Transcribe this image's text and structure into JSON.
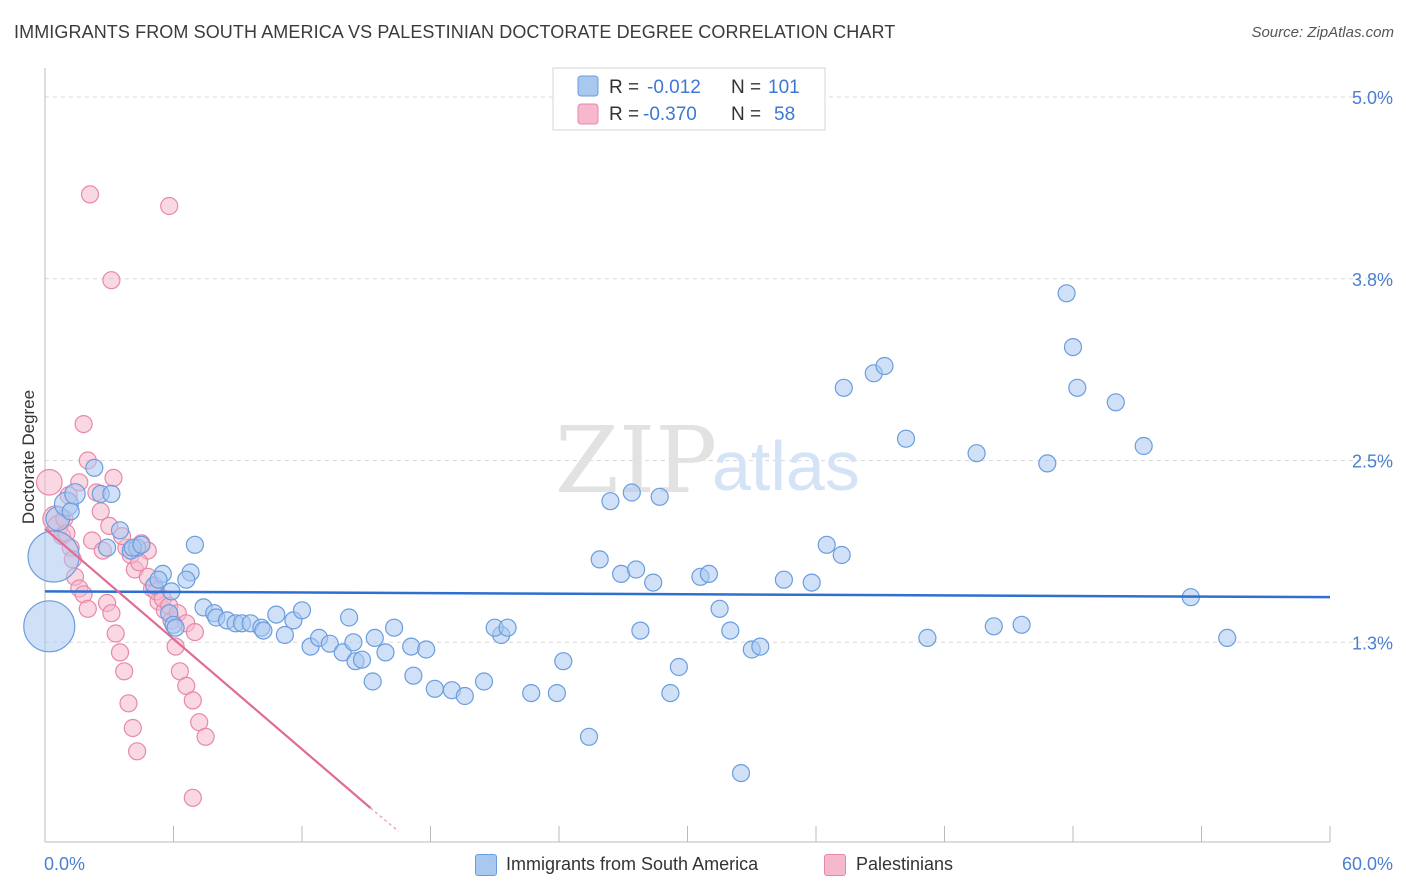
{
  "header": {
    "title": "IMMIGRANTS FROM SOUTH AMERICA VS PALESTINIAN DOCTORATE DEGREE CORRELATION CHART",
    "source": "Source: ZipAtlas.com"
  },
  "watermark": {
    "zip": "ZIP",
    "atlas": "atlas"
  },
  "stats": [
    {
      "r_label": "R =",
      "r": "-0.012",
      "n_label": "N =",
      "n": "101"
    },
    {
      "r_label": "R =",
      "r": "-0.370",
      "n_label": "N =",
      "n": "58"
    }
  ],
  "colors": {
    "blue_fill": "#a9c8f0",
    "blue_stroke": "#6a9ddf",
    "blue_line": "#2e6fcf",
    "pink_fill": "#f6b8cc",
    "pink_stroke": "#e888a8",
    "pink_line": "#e26b96",
    "tick_label": "#4a7fd1",
    "grid": "#d8d8d8"
  },
  "chart_data": {
    "type": "scatter",
    "title": "IMMIGRANTS FROM SOUTH AMERICA VS PALESTINIAN DOCTORATE DEGREE CORRELATION CHART",
    "xlabel": "",
    "ylabel": "Doctorate Degree",
    "xlim": [
      0,
      60
    ],
    "ylim": [
      0,
      5.1
    ],
    "x_tick_labels": {
      "left": "0.0%",
      "right": "60.0%"
    },
    "y_ticks": [
      {
        "value": 1.25,
        "label": "1.3%"
      },
      {
        "value": 2.5,
        "label": "2.5%"
      },
      {
        "value": 3.75,
        "label": "3.8%"
      },
      {
        "value": 5.0,
        "label": "5.0%"
      }
    ],
    "legend": [
      "Immigrants from South America",
      "Palestinians"
    ],
    "series": [
      {
        "name": "Immigrants from South America",
        "trendline": {
          "x0": 0,
          "y0": 1.6,
          "x1": 60,
          "y1": 1.56
        },
        "points": [
          [
            0.2,
            1.36,
            3
          ],
          [
            0.4,
            1.84,
            3
          ],
          [
            0.6,
            2.1,
            1.4
          ],
          [
            1.0,
            2.2,
            1.4
          ],
          [
            1.2,
            2.15,
            1
          ],
          [
            1.4,
            2.27,
            1.2
          ],
          [
            2.3,
            2.45,
            1
          ],
          [
            2.6,
            2.27,
            1
          ],
          [
            3.1,
            2.27,
            1
          ],
          [
            2.9,
            1.9,
            1
          ],
          [
            3.5,
            2.02,
            1
          ],
          [
            4.0,
            1.88,
            1
          ],
          [
            4.3,
            1.9,
            1
          ],
          [
            4.1,
            1.9,
            1
          ],
          [
            4.5,
            1.92,
            1
          ],
          [
            5.1,
            1.64,
            1
          ],
          [
            5.5,
            1.72,
            1
          ],
          [
            5.3,
            1.68,
            1
          ],
          [
            5.8,
            1.45,
            1
          ],
          [
            5.9,
            1.6,
            1
          ],
          [
            6.0,
            1.37,
            1
          ],
          [
            6.1,
            1.35,
            1
          ],
          [
            6.8,
            1.73,
            1
          ],
          [
            6.6,
            1.68,
            1
          ],
          [
            7.0,
            1.92,
            1
          ],
          [
            7.4,
            1.49,
            1
          ],
          [
            7.9,
            1.45,
            1
          ],
          [
            8.0,
            1.42,
            1
          ],
          [
            8.5,
            1.4,
            1
          ],
          [
            8.9,
            1.38,
            1
          ],
          [
            9.2,
            1.38,
            1
          ],
          [
            9.6,
            1.38,
            1
          ],
          [
            10.1,
            1.35,
            1
          ],
          [
            10.2,
            1.33,
            1
          ],
          [
            10.8,
            1.44,
            1
          ],
          [
            11.2,
            1.3,
            1
          ],
          [
            11.6,
            1.4,
            1
          ],
          [
            12.0,
            1.47,
            1
          ],
          [
            12.4,
            1.22,
            1
          ],
          [
            12.8,
            1.28,
            1
          ],
          [
            13.3,
            1.24,
            1
          ],
          [
            13.9,
            1.18,
            1
          ],
          [
            14.4,
            1.25,
            1
          ],
          [
            14.2,
            1.42,
            1
          ],
          [
            14.5,
            1.12,
            1
          ],
          [
            14.8,
            1.13,
            1
          ],
          [
            15.4,
            1.28,
            1
          ],
          [
            15.3,
            0.98,
            1
          ],
          [
            15.9,
            1.18,
            1
          ],
          [
            16.3,
            1.35,
            1
          ],
          [
            17.1,
            1.22,
            1
          ],
          [
            17.2,
            1.02,
            1
          ],
          [
            17.8,
            1.2,
            1
          ],
          [
            18.2,
            0.93,
            1
          ],
          [
            19.0,
            0.92,
            1
          ],
          [
            19.6,
            0.88,
            1
          ],
          [
            20.5,
            0.98,
            1
          ],
          [
            21.3,
            1.3,
            1
          ],
          [
            21.0,
            1.35,
            1
          ],
          [
            21.6,
            1.35,
            1
          ],
          [
            22.7,
            0.9,
            1
          ],
          [
            23.9,
            0.9,
            1
          ],
          [
            24.2,
            1.12,
            1
          ],
          [
            25.4,
            0.6,
            1
          ],
          [
            25.9,
            1.82,
            1
          ],
          [
            26.4,
            2.22,
            1
          ],
          [
            26.9,
            1.72,
            1
          ],
          [
            27.4,
            2.28,
            1
          ],
          [
            27.6,
            1.75,
            1
          ],
          [
            27.8,
            1.33,
            1
          ],
          [
            28.4,
            1.66,
            1
          ],
          [
            28.7,
            2.25,
            1
          ],
          [
            29.2,
            0.9,
            1
          ],
          [
            29.6,
            1.08,
            1
          ],
          [
            30.6,
            1.7,
            1
          ],
          [
            31.0,
            1.72,
            1
          ],
          [
            31.5,
            1.48,
            1
          ],
          [
            32.5,
            0.35,
            1
          ],
          [
            32.0,
            1.33,
            1
          ],
          [
            33.0,
            1.2,
            1
          ],
          [
            33.4,
            1.22,
            1
          ],
          [
            34.5,
            1.68,
            1
          ],
          [
            35.8,
            1.66,
            1
          ],
          [
            36.5,
            1.92,
            1
          ],
          [
            37.2,
            1.85,
            1
          ],
          [
            38.7,
            3.1,
            1
          ],
          [
            37.3,
            3.0,
            1
          ],
          [
            39.2,
            3.15,
            1
          ],
          [
            40.2,
            2.65,
            1
          ],
          [
            41.2,
            1.28,
            1
          ],
          [
            43.5,
            2.55,
            1
          ],
          [
            44.3,
            1.36,
            1
          ],
          [
            45.6,
            1.37,
            1
          ],
          [
            46.8,
            2.48,
            1
          ],
          [
            47.7,
            3.65,
            1
          ],
          [
            48.0,
            3.28,
            1
          ],
          [
            48.2,
            3.0,
            1
          ],
          [
            50.0,
            2.9,
            1
          ],
          [
            51.3,
            2.6,
            1
          ],
          [
            53.5,
            1.56,
            1
          ],
          [
            55.2,
            1.28,
            1
          ]
        ]
      },
      {
        "name": "Palestinians",
        "trendline": {
          "x0": 0,
          "y0": 2.03,
          "x1": 15.2,
          "y1": 0.11,
          "dashed_to": {
            "x": 16.5,
            "y": -0.05
          }
        },
        "points": [
          [
            0.2,
            2.35,
            1.5
          ],
          [
            0.5,
            2.1,
            1.5
          ],
          [
            0.6,
            2.05,
            1.2
          ],
          [
            0.8,
            1.98,
            1
          ],
          [
            0.9,
            2.1,
            1
          ],
          [
            1.0,
            2.0,
            1
          ],
          [
            1.2,
            1.9,
            1
          ],
          [
            1.3,
            1.82,
            1
          ],
          [
            1.4,
            1.7,
            1
          ],
          [
            1.6,
            1.62,
            1
          ],
          [
            1.8,
            1.58,
            1
          ],
          [
            2.0,
            1.48,
            1
          ],
          [
            2.2,
            1.95,
            1
          ],
          [
            2.4,
            2.28,
            1
          ],
          [
            2.7,
            1.88,
            1
          ],
          [
            2.9,
            1.52,
            1
          ],
          [
            3.1,
            1.45,
            1
          ],
          [
            3.3,
            1.31,
            1
          ],
          [
            3.5,
            1.18,
            1
          ],
          [
            3.7,
            1.05,
            1
          ],
          [
            3.9,
            0.83,
            1
          ],
          [
            4.1,
            0.66,
            1
          ],
          [
            4.3,
            0.5,
            1
          ],
          [
            4.5,
            1.93,
            1
          ],
          [
            4.8,
            1.88,
            1
          ],
          [
            5.0,
            1.62,
            1
          ],
          [
            5.3,
            1.53,
            1
          ],
          [
            5.6,
            1.47,
            1
          ],
          [
            5.9,
            1.4,
            1
          ],
          [
            6.1,
            1.22,
            1
          ],
          [
            6.3,
            1.05,
            1
          ],
          [
            6.6,
            0.95,
            1
          ],
          [
            6.9,
            0.85,
            1
          ],
          [
            7.2,
            0.7,
            1
          ],
          [
            7.5,
            0.6,
            1
          ],
          [
            1.8,
            2.75,
            1
          ],
          [
            3.2,
            2.38,
            1
          ],
          [
            3.8,
            1.9,
            1
          ],
          [
            4.2,
            1.75,
            1
          ],
          [
            1.1,
            2.26,
            1
          ],
          [
            1.6,
            2.35,
            1
          ],
          [
            2.0,
            2.5,
            1
          ],
          [
            2.6,
            2.15,
            1
          ],
          [
            3.0,
            2.05,
            1
          ],
          [
            3.6,
            1.98,
            1
          ],
          [
            4.0,
            1.85,
            1
          ],
          [
            4.4,
            1.8,
            1
          ],
          [
            4.8,
            1.7,
            1
          ],
          [
            5.2,
            1.6,
            1
          ],
          [
            5.5,
            1.55,
            1
          ],
          [
            5.8,
            1.5,
            1
          ],
          [
            6.2,
            1.45,
            1
          ],
          [
            6.6,
            1.38,
            1
          ],
          [
            7.0,
            1.32,
            1
          ],
          [
            2.1,
            4.33,
            1
          ],
          [
            5.8,
            4.25,
            1
          ],
          [
            3.1,
            3.74,
            1
          ],
          [
            6.9,
            0.18,
            1
          ]
        ]
      }
    ]
  }
}
